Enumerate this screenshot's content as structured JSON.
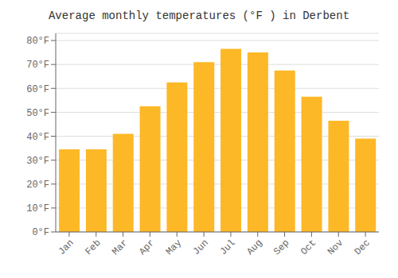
{
  "chart_data": {
    "type": "bar",
    "title": "Average monthly temperatures (°F ) in Derbent",
    "categories": [
      "Jan",
      "Feb",
      "Mar",
      "Apr",
      "May",
      "Jun",
      "Jul",
      "Aug",
      "Sep",
      "Oct",
      "Nov",
      "Dec"
    ],
    "values": [
      34.5,
      34.5,
      41.0,
      52.5,
      62.5,
      71.0,
      76.5,
      75.0,
      67.5,
      56.5,
      46.5,
      39.0
    ],
    "color": "#FDB827",
    "ylim": [
      0,
      83
    ],
    "yticks": [
      {
        "value": 0,
        "label": "0°F"
      },
      {
        "value": 10,
        "label": "10°F"
      },
      {
        "value": 20,
        "label": "20°F"
      },
      {
        "value": 30,
        "label": "30°F"
      },
      {
        "value": 40,
        "label": "40°F"
      },
      {
        "value": 50,
        "label": "50°F"
      },
      {
        "value": 60,
        "label": "60°F"
      },
      {
        "value": 70,
        "label": "70°F"
      },
      {
        "value": 80,
        "label": "80°F"
      }
    ],
    "grid": true
  }
}
